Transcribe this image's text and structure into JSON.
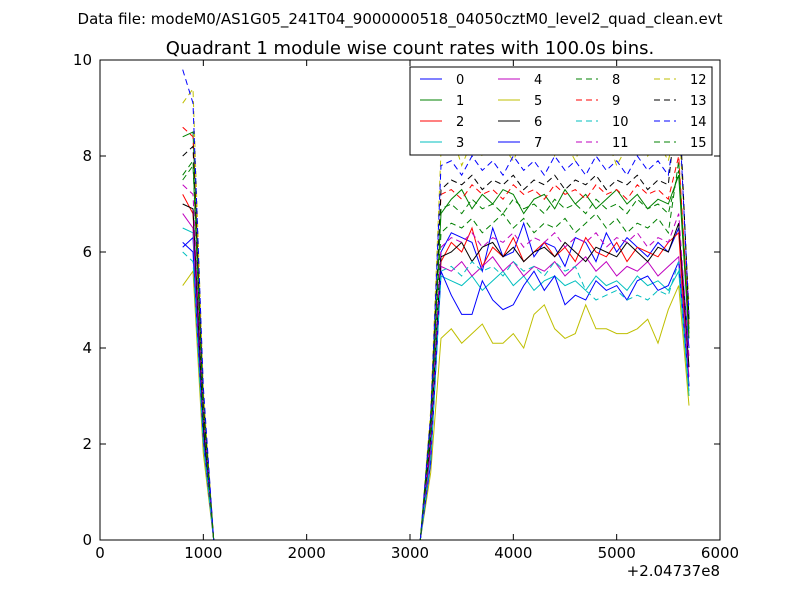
{
  "suptitle": "Data file: modeM0/AS1G05_241T04_9000000518_04050cztM0_level2_quad_clean.evt",
  "chart_data": {
    "type": "line",
    "title": "Quadrant 1 module wise count rates with 100.0s bins.",
    "xlabel": "",
    "ylabel": "",
    "xlim": [
      0,
      6000
    ],
    "ylim": [
      0,
      10
    ],
    "xticks": [
      "0",
      "1000",
      "2000",
      "3000",
      "4000",
      "5000",
      "6000"
    ],
    "yticks": [
      "0",
      "2",
      "4",
      "6",
      "8",
      "10"
    ],
    "x_offset_label": "+2.04737e8",
    "grid": false,
    "legend": {
      "placement": "top-right",
      "columns": 4
    },
    "x": [
      800,
      900,
      1000,
      1100,
      1200,
      1300,
      1400,
      1500,
      1600,
      1700,
      1800,
      1900,
      2000,
      2100,
      2200,
      2300,
      2400,
      2500,
      2600,
      2700,
      2800,
      2900,
      3000,
      3100,
      3200,
      3300,
      3400,
      3500,
      3600,
      3700,
      3800,
      3900,
      4000,
      4100,
      4200,
      4300,
      4400,
      4500,
      4600,
      4700,
      4800,
      4900,
      5000,
      5100,
      5200,
      5300,
      5400,
      5500,
      5600,
      5700
    ],
    "series": [
      {
        "name": "0",
        "color": "#0000ff",
        "dash": "solid",
        "values": [
          6.1,
          6.3,
          2.2,
          0,
          0,
          0,
          0,
          0,
          0,
          0,
          0,
          0,
          0,
          0,
          0,
          0,
          0,
          0,
          0,
          0,
          0,
          0,
          0,
          0,
          1.8,
          6.0,
          6.4,
          6.3,
          6.2,
          5.6,
          6.5,
          5.9,
          6.0,
          6.6,
          5.9,
          6.2,
          6.1,
          5.7,
          6.3,
          6.2,
          5.8,
          6.4,
          6.0,
          6.3,
          6.1,
          5.9,
          6.2,
          6.0,
          6.5,
          4.0
        ]
      },
      {
        "name": "1",
        "color": "#008000",
        "dash": "solid",
        "values": [
          8.4,
          8.5,
          3.0,
          0,
          0,
          0,
          0,
          0,
          0,
          0,
          0,
          0,
          0,
          0,
          0,
          0,
          0,
          0,
          0,
          0,
          0,
          0,
          0,
          0,
          2.5,
          6.8,
          7.1,
          7.3,
          6.9,
          7.2,
          7.0,
          7.3,
          7.2,
          6.8,
          7.1,
          7.2,
          6.9,
          7.3,
          7.0,
          7.2,
          6.9,
          7.1,
          7.3,
          7.0,
          7.2,
          6.9,
          7.1,
          7.0,
          7.6,
          4.2
        ]
      },
      {
        "name": "2",
        "color": "#ff0000",
        "dash": "solid",
        "values": [
          7.2,
          6.8,
          2.5,
          0,
          0,
          0,
          0,
          0,
          0,
          0,
          0,
          0,
          0,
          0,
          0,
          0,
          0,
          0,
          0,
          0,
          0,
          0,
          0,
          0,
          2.0,
          5.8,
          6.2,
          6.0,
          6.5,
          5.7,
          6.1,
          5.9,
          6.3,
          5.8,
          6.0,
          6.2,
          5.9,
          6.1,
          5.8,
          6.3,
          6.0,
          5.9,
          6.2,
          5.8,
          6.1,
          6.0,
          5.9,
          6.2,
          6.4,
          3.2
        ]
      },
      {
        "name": "3",
        "color": "#00bfbf",
        "dash": "solid",
        "values": [
          6.5,
          6.4,
          2.0,
          0,
          0,
          0,
          0,
          0,
          0,
          0,
          0,
          0,
          0,
          0,
          0,
          0,
          0,
          0,
          0,
          0,
          0,
          0,
          0,
          0,
          1.7,
          5.5,
          5.4,
          5.3,
          5.5,
          5.2,
          5.4,
          5.6,
          5.3,
          5.5,
          5.2,
          5.4,
          5.5,
          5.3,
          5.4,
          5.2,
          5.5,
          5.3,
          5.4,
          5.2,
          5.5,
          5.3,
          5.4,
          5.2,
          5.6,
          3.0
        ]
      },
      {
        "name": "4",
        "color": "#bf00bf",
        "dash": "solid",
        "values": [
          6.8,
          6.5,
          2.3,
          0,
          0,
          0,
          0,
          0,
          0,
          0,
          0,
          0,
          0,
          0,
          0,
          0,
          0,
          0,
          0,
          0,
          0,
          0,
          0,
          0,
          1.9,
          5.7,
          5.6,
          5.8,
          5.5,
          5.7,
          5.9,
          5.6,
          5.8,
          5.5,
          5.7,
          5.6,
          5.8,
          5.5,
          5.7,
          5.9,
          5.6,
          5.8,
          5.5,
          5.7,
          5.6,
          5.8,
          5.5,
          5.7,
          5.9,
          3.4
        ]
      },
      {
        "name": "5",
        "color": "#bfbf00",
        "dash": "solid",
        "values": [
          5.3,
          5.6,
          1.8,
          0,
          0,
          0,
          0,
          0,
          0,
          0,
          0,
          0,
          0,
          0,
          0,
          0,
          0,
          0,
          0,
          0,
          0,
          0,
          0,
          0,
          1.4,
          4.2,
          4.4,
          4.1,
          4.3,
          4.5,
          4.1,
          4.1,
          4.3,
          4.0,
          4.7,
          4.9,
          4.4,
          4.2,
          4.3,
          4.9,
          4.4,
          4.4,
          4.3,
          4.3,
          4.4,
          4.6,
          4.1,
          4.8,
          5.3,
          2.8
        ]
      },
      {
        "name": "6",
        "color": "#000000",
        "dash": "solid",
        "values": [
          7.0,
          6.9,
          2.4,
          0,
          0,
          0,
          0,
          0,
          0,
          0,
          0,
          0,
          0,
          0,
          0,
          0,
          0,
          0,
          0,
          0,
          0,
          0,
          0,
          0,
          2.1,
          5.9,
          6.0,
          6.2,
          5.8,
          6.1,
          6.2,
          5.9,
          6.1,
          5.8,
          6.0,
          6.1,
          5.9,
          6.2,
          6.0,
          5.8,
          6.1,
          6.0,
          5.9,
          6.2,
          6.0,
          5.8,
          6.1,
          6.0,
          6.6,
          3.6
        ]
      },
      {
        "name": "7",
        "color": "#0000ff",
        "dash": "solid",
        "values": [
          6.2,
          6.0,
          2.1,
          0,
          0,
          0,
          0,
          0,
          0,
          0,
          0,
          0,
          0,
          0,
          0,
          0,
          0,
          0,
          0,
          0,
          0,
          0,
          0,
          0,
          1.6,
          5.6,
          5.1,
          4.7,
          4.7,
          5.4,
          5.0,
          4.8,
          4.9,
          5.3,
          5.6,
          5.2,
          5.5,
          4.9,
          5.1,
          5.0,
          5.4,
          5.2,
          5.3,
          5.0,
          5.4,
          5.5,
          5.2,
          5.3,
          5.8,
          3.2
        ]
      },
      {
        "name": "8",
        "color": "#008000",
        "dash": "dashed",
        "values": [
          7.5,
          7.8,
          2.7,
          0,
          0,
          0,
          0,
          0,
          0,
          0,
          0,
          0,
          0,
          0,
          0,
          0,
          0,
          0,
          0,
          0,
          0,
          0,
          0,
          0,
          2.3,
          6.4,
          6.6,
          6.5,
          6.7,
          6.4,
          6.6,
          6.8,
          6.5,
          6.7,
          6.4,
          6.6,
          6.5,
          6.7,
          6.4,
          6.6,
          6.8,
          6.5,
          6.7,
          6.4,
          6.6,
          6.5,
          6.7,
          6.4,
          7.9,
          4.4
        ]
      },
      {
        "name": "9",
        "color": "#ff0000",
        "dash": "dashed",
        "values": [
          8.6,
          8.4,
          2.9,
          0,
          0,
          0,
          0,
          0,
          0,
          0,
          0,
          0,
          0,
          0,
          0,
          0,
          0,
          0,
          0,
          0,
          0,
          0,
          0,
          0,
          2.4,
          7.2,
          7.3,
          7.1,
          7.4,
          7.2,
          7.3,
          7.1,
          7.4,
          7.2,
          7.3,
          7.1,
          7.4,
          7.2,
          7.3,
          7.1,
          7.4,
          7.2,
          7.3,
          7.1,
          7.4,
          7.2,
          7.3,
          7.1,
          8.0,
          4.5
        ]
      },
      {
        "name": "10",
        "color": "#00bfbf",
        "dash": "dashed",
        "values": [
          6.0,
          5.8,
          2.0,
          0,
          0,
          0,
          0,
          0,
          0,
          0,
          0,
          0,
          0,
          0,
          0,
          0,
          0,
          0,
          0,
          0,
          0,
          0,
          0,
          0,
          1.7,
          5.6,
          5.7,
          5.5,
          5.8,
          5.6,
          5.7,
          5.5,
          5.8,
          5.6,
          5.7,
          5.5,
          5.8,
          5.6,
          5.7,
          5.2,
          5.0,
          5.1,
          5.2,
          5.0,
          5.1,
          5.0,
          5.2,
          5.1,
          5.8,
          3.1
        ]
      },
      {
        "name": "11",
        "color": "#bf00bf",
        "dash": "dashed",
        "values": [
          7.4,
          7.2,
          2.6,
          0,
          0,
          0,
          0,
          0,
          0,
          0,
          0,
          0,
          0,
          0,
          0,
          0,
          0,
          0,
          0,
          0,
          0,
          0,
          0,
          0,
          2.2,
          6.1,
          6.3,
          6.2,
          6.4,
          6.1,
          6.3,
          6.2,
          6.4,
          6.1,
          6.3,
          6.2,
          6.4,
          6.1,
          6.3,
          6.2,
          6.4,
          6.1,
          6.3,
          6.2,
          6.4,
          6.1,
          6.3,
          6.2,
          6.8,
          3.8
        ]
      },
      {
        "name": "12",
        "color": "#bfbf00",
        "dash": "dashed",
        "values": [
          9.1,
          9.4,
          3.1,
          0,
          0,
          0,
          0,
          0,
          0,
          0,
          0,
          0,
          0,
          0,
          0,
          0,
          0,
          0,
          0,
          0,
          0,
          0,
          0,
          0,
          2.7,
          8.1,
          8.5,
          7.8,
          8.3,
          8.0,
          8.6,
          8.2,
          7.9,
          8.4,
          8.1,
          8.7,
          8.0,
          8.3,
          7.9,
          8.5,
          8.1,
          8.4,
          7.8,
          8.2,
          8.6,
          8.0,
          8.3,
          7.9,
          8.8,
          4.9
        ]
      },
      {
        "name": "13",
        "color": "#000000",
        "dash": "dashed",
        "values": [
          8.0,
          8.2,
          2.8,
          0,
          0,
          0,
          0,
          0,
          0,
          0,
          0,
          0,
          0,
          0,
          0,
          0,
          0,
          0,
          0,
          0,
          0,
          0,
          0,
          0,
          2.5,
          7.3,
          7.5,
          7.4,
          7.6,
          7.3,
          7.5,
          7.4,
          7.6,
          7.3,
          7.5,
          7.4,
          7.6,
          7.3,
          7.5,
          7.4,
          7.6,
          7.3,
          7.5,
          7.4,
          7.6,
          7.3,
          7.5,
          7.4,
          9.4,
          4.6
        ]
      },
      {
        "name": "14",
        "color": "#0000ff",
        "dash": "dashed",
        "values": [
          9.8,
          9.1,
          3.2,
          0,
          0,
          0,
          0,
          0,
          0,
          0,
          0,
          0,
          0,
          0,
          0,
          0,
          0,
          0,
          0,
          0,
          0,
          0,
          0,
          0,
          2.6,
          7.8,
          7.9,
          7.6,
          8.0,
          7.7,
          7.9,
          7.6,
          8.0,
          7.7,
          7.9,
          7.6,
          8.0,
          7.7,
          7.9,
          7.6,
          8.0,
          7.7,
          7.9,
          7.6,
          8.0,
          7.7,
          7.9,
          7.6,
          9.1,
          4.7
        ]
      },
      {
        "name": "15",
        "color": "#008000",
        "dash": "dashed",
        "values": [
          7.6,
          7.9,
          2.6,
          0,
          0,
          0,
          0,
          0,
          0,
          0,
          0,
          0,
          0,
          0,
          0,
          0,
          0,
          0,
          0,
          0,
          0,
          0,
          0,
          0,
          2.3,
          6.9,
          7.0,
          6.8,
          7.1,
          6.9,
          7.0,
          6.8,
          7.1,
          6.9,
          7.0,
          6.8,
          7.1,
          6.9,
          7.0,
          6.8,
          7.1,
          6.9,
          7.0,
          6.8,
          7.1,
          6.9,
          7.0,
          6.8,
          7.7,
          4.3
        ]
      }
    ]
  }
}
